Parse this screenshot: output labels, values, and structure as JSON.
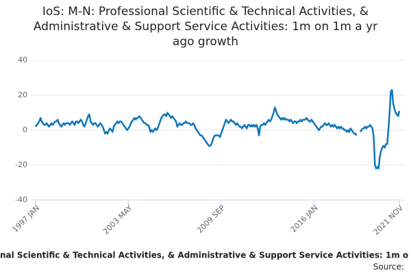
{
  "chart_data": {
    "type": "line",
    "title_lines": [
      "IoS: M-N: Professional Scientific & Technical Activities, &",
      "Administrative & Support Service Activities: 1m on 1m a yr",
      "ago growth"
    ],
    "footer": "nal Scientific & Technical Activities, & Administrative & Support Service Activities: 1m o",
    "source": "Source:",
    "categories": [
      "1997 JAN",
      null,
      null,
      null,
      null,
      null,
      null,
      null,
      null,
      null,
      null,
      null,
      null,
      null,
      null,
      null,
      null,
      null,
      null,
      null,
      null,
      null,
      null,
      null,
      null,
      null,
      null,
      null,
      null,
      null,
      null,
      null,
      null,
      null,
      null,
      null,
      null,
      null,
      null,
      null,
      null,
      null,
      null,
      null,
      null,
      null,
      null,
      null,
      null,
      null,
      null,
      null,
      null,
      null,
      null,
      null,
      null,
      null,
      null,
      null,
      null,
      null,
      null,
      null,
      null,
      null,
      null,
      null,
      null,
      null,
      null,
      null,
      null,
      null,
      null,
      null,
      "2003 MAY",
      null,
      null,
      null,
      null,
      null,
      null,
      null,
      null,
      null,
      null,
      null,
      null,
      null,
      null,
      null,
      null,
      null,
      null,
      null,
      null,
      null,
      null,
      null,
      null,
      null,
      null,
      null,
      null,
      null,
      null,
      null,
      null,
      null,
      null,
      null,
      null,
      null,
      null,
      null,
      null,
      null,
      null,
      null,
      null,
      null,
      null,
      null,
      null,
      null,
      null,
      null,
      null,
      null,
      null,
      null,
      null,
      null,
      null,
      null,
      null,
      null,
      null,
      null,
      null,
      null,
      null,
      null,
      null,
      null,
      null,
      null,
      null,
      null,
      null,
      null,
      "2009 SEP",
      null,
      null,
      null,
      null,
      null,
      null,
      null,
      null,
      null,
      null,
      null,
      null,
      null,
      null,
      null,
      null,
      null,
      null,
      null,
      null,
      null,
      null,
      null,
      null,
      null,
      null,
      null,
      null,
      null,
      null,
      null,
      null,
      null,
      null,
      null,
      null,
      null,
      null,
      null,
      null,
      null,
      null,
      null,
      null,
      null,
      null,
      null,
      null,
      null,
      null,
      null,
      null,
      null,
      null,
      null,
      null,
      null,
      null,
      null,
      null,
      null,
      null,
      null,
      null,
      null,
      null,
      null,
      null,
      null,
      null,
      null,
      null,
      null,
      null,
      null,
      "2016 JAN",
      null,
      null,
      null,
      null,
      null,
      null,
      null,
      null,
      null,
      null,
      null,
      null,
      null,
      null,
      null,
      null,
      null,
      null,
      null,
      null,
      null,
      null,
      null,
      null,
      null,
      null,
      null,
      null,
      null,
      null,
      null,
      null,
      null,
      null,
      null,
      null,
      null,
      null,
      null,
      null,
      null,
      null,
      null,
      null,
      null,
      null,
      null,
      null,
      null,
      null,
      null,
      null,
      null,
      null,
      null,
      null,
      null,
      null,
      null,
      null,
      null,
      null,
      null,
      null,
      null,
      null,
      null,
      null,
      null,
      "2021 NOV"
    ],
    "values": [
      2,
      3,
      4,
      5,
      7,
      5,
      4,
      3,
      3,
      4,
      3,
      2,
      3,
      4,
      3,
      4,
      5,
      5,
      6,
      4,
      3,
      2,
      3,
      4,
      3,
      4,
      4,
      4,
      3,
      4,
      5,
      4,
      3,
      5,
      5,
      4,
      5,
      6,
      5,
      3,
      2,
      4,
      6,
      8,
      9,
      5,
      4,
      3,
      4,
      4,
      3,
      2,
      3,
      4,
      3,
      2,
      0,
      -2,
      -1,
      -2,
      0,
      1,
      0,
      -1,
      2,
      3,
      4,
      5,
      4,
      5,
      5,
      4,
      3,
      2,
      1,
      0,
      1,
      2,
      4,
      5,
      6,
      7,
      6,
      7,
      7,
      8,
      7,
      6,
      5,
      4,
      4,
      3,
      3,
      2,
      -1,
      0,
      -1,
      0,
      1,
      0,
      1,
      3,
      5,
      7,
      8,
      9,
      9,
      8,
      10,
      9,
      8,
      7,
      8,
      7,
      6,
      5,
      2,
      3,
      4,
      3,
      3,
      4,
      4,
      5,
      4,
      4,
      4,
      3,
      3,
      4,
      3,
      1,
      0,
      -1,
      -2,
      -3,
      -3,
      -4,
      -5,
      -6,
      -7,
      -8,
      -9,
      -9,
      -8,
      -6,
      -4,
      -3,
      -3,
      -3,
      -3,
      -4,
      -2,
      0,
      2,
      4,
      6,
      5,
      4,
      5,
      6,
      5,
      5,
      4,
      3,
      4,
      3,
      2,
      2,
      1,
      2,
      3,
      2,
      1,
      3,
      3,
      2,
      3,
      2,
      3,
      2,
      3,
      1,
      -3,
      2,
      3,
      3,
      4,
      3,
      4,
      5,
      6,
      5,
      6,
      8,
      10,
      13,
      11,
      9,
      8,
      7,
      6,
      7,
      6,
      7,
      6,
      6,
      6,
      5,
      6,
      5,
      4,
      5,
      5,
      4,
      5,
      5,
      6,
      5,
      6,
      6,
      6,
      7,
      6,
      5,
      5,
      6,
      5,
      4,
      3,
      2,
      1,
      0,
      1,
      2,
      2,
      3,
      4,
      3,
      3,
      4,
      3,
      2,
      3,
      2,
      3,
      2,
      1,
      2,
      1,
      2,
      1,
      1,
      0,
      0,
      -1,
      0,
      -1,
      1,
      0,
      -1,
      -2,
      -2,
      -3,
      null,
      null,
      -1,
      0,
      1,
      1,
      2,
      1,
      2,
      2,
      3,
      2,
      1,
      -4,
      -20,
      -22,
      -21,
      -22,
      -15,
      -12,
      -10,
      -9,
      -10,
      -8,
      -8,
      0,
      10,
      22,
      23,
      15,
      12,
      10,
      9,
      8,
      11
    ],
    "color": "#0f76bc",
    "ylim": [
      -40,
      40
    ],
    "yticks": [
      40,
      20,
      0,
      -20,
      -40
    ],
    "grid": true
  }
}
